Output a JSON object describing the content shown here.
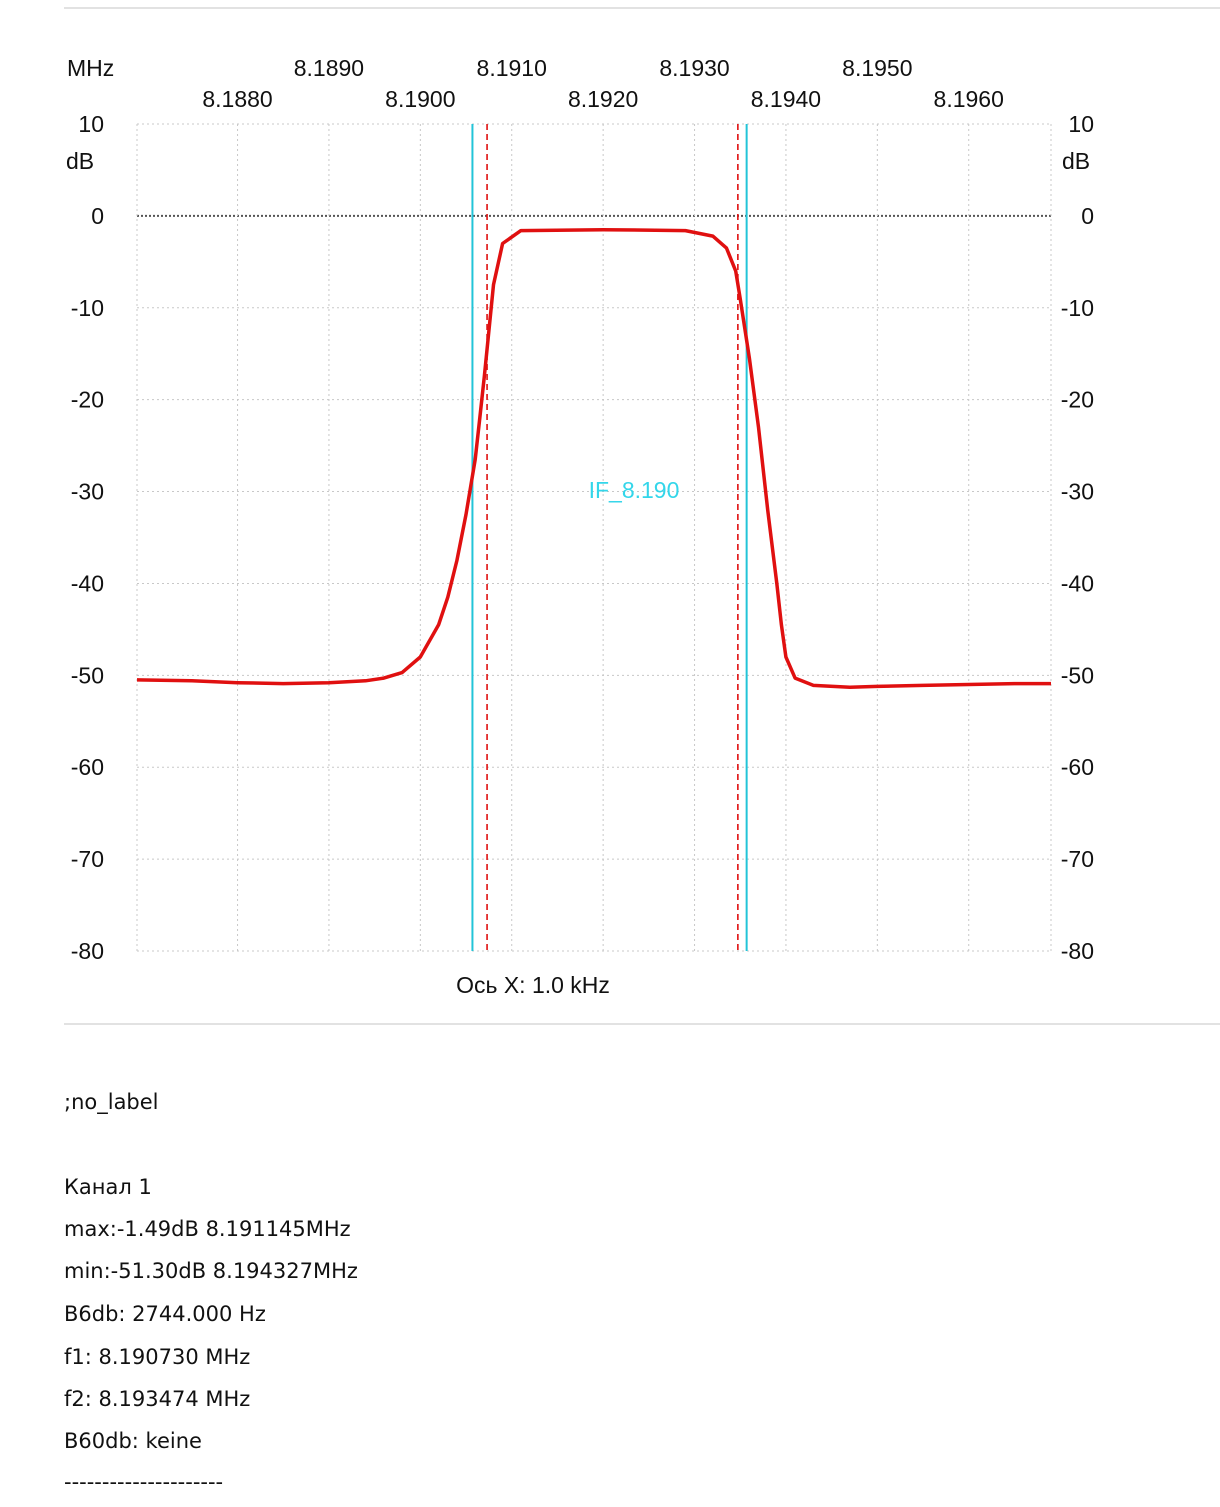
{
  "chart_data": {
    "type": "line",
    "x_unit_label": "MHz",
    "y_unit_label": "dB",
    "x_axis_label": "Ось X: 1.0 kHz",
    "xlim": [
      8.1869,
      8.1969
    ],
    "ylim": [
      -80,
      10
    ],
    "x_ticks_row1": [
      "8.1890",
      "8.1910",
      "8.1930",
      "8.1950"
    ],
    "x_ticks_row2": [
      "8.1880",
      "8.1900",
      "8.1920",
      "8.1940",
      "8.1960"
    ],
    "x_ticks_row1_values": [
      8.189,
      8.191,
      8.193,
      8.195
    ],
    "x_ticks_row2_values": [
      8.188,
      8.19,
      8.192,
      8.194,
      8.196
    ],
    "y_ticks": [
      10,
      0,
      -10,
      -20,
      -30,
      -40,
      -50,
      -60,
      -70,
      -80
    ],
    "grid": true,
    "annotation": "IF_8.190",
    "markers": {
      "cyan_solid": [
        8.19057,
        8.19357
      ],
      "red_dashed": [
        8.19073,
        8.193474
      ]
    },
    "series": [
      {
        "color": "#e01010",
        "x": [
          8.1869,
          8.1875,
          8.188,
          8.1885,
          8.189,
          8.1894,
          8.1896,
          8.1898,
          8.19,
          8.1902,
          8.1903,
          8.1904,
          8.1905,
          8.1906,
          8.19065,
          8.1907,
          8.19075,
          8.1908,
          8.1909,
          8.1911,
          8.192,
          8.1929,
          8.1932,
          8.19335,
          8.19345,
          8.1935,
          8.1936,
          8.1937,
          8.1938,
          8.1939,
          8.19395,
          8.194,
          8.1941,
          8.1943,
          8.1947,
          8.195,
          8.1955,
          8.196,
          8.1965,
          8.1969
        ],
        "values": [
          -50.5,
          -50.6,
          -50.8,
          -50.9,
          -50.8,
          -50.6,
          -50.3,
          -49.7,
          -48.0,
          -44.5,
          -41.5,
          -37.5,
          -32.5,
          -26.5,
          -22.0,
          -17.5,
          -12.5,
          -7.5,
          -3.0,
          -1.6,
          -1.5,
          -1.6,
          -2.2,
          -3.5,
          -6.0,
          -9.0,
          -15.5,
          -23.0,
          -32.0,
          -40.0,
          -44.5,
          -48.0,
          -50.3,
          -51.1,
          -51.3,
          -51.2,
          -51.1,
          -51.0,
          -50.9,
          -50.9
        ]
      }
    ]
  },
  "info": {
    "label": ";no_label",
    "channel": "Канал 1",
    "max": "max:-1.49dB 8.191145MHz",
    "min": "min:-51.30dB 8.194327MHz",
    "b6db": "B6db: 2744.000 Hz",
    "f1": "f1: 8.190730 MHz",
    "f2": "f2: 8.193474 MHz",
    "b60db": "B60db: keine",
    "separator": "---------------------"
  },
  "colors": {
    "trace": "#e01010",
    "marker_solid": "#22c4d8",
    "marker_dashed": "#e01010",
    "annotation": "#33d6ea",
    "grid": "#c8c8c8",
    "zero_line": "#555555"
  }
}
